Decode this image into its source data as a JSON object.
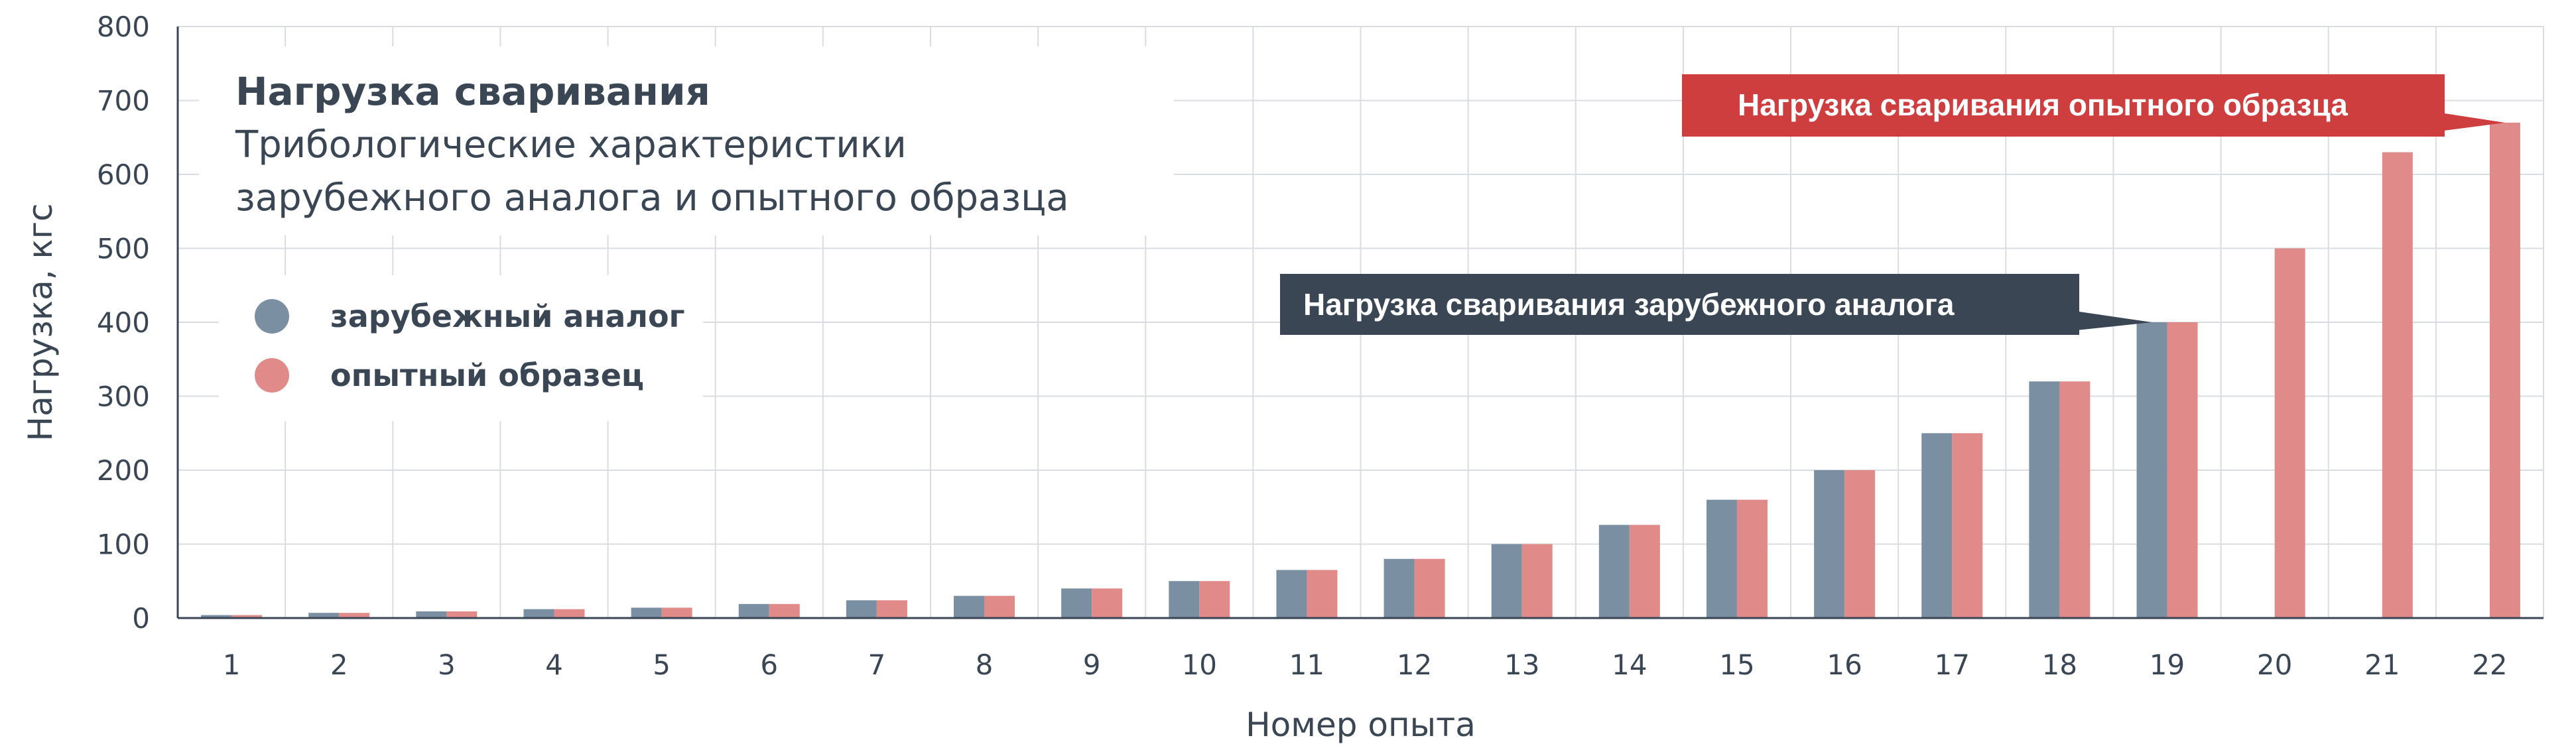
{
  "chart_data": {
    "type": "bar",
    "title": "Нагрузка сваривания",
    "subtitle_lines": [
      "Трибологические характеристики",
      "зарубежного аналога и опытного образца"
    ],
    "xlabel": "Номер опыта",
    "ylabel": "Нагрузка, кгс",
    "ylim": [
      0,
      800
    ],
    "yticks": [
      0,
      100,
      200,
      300,
      400,
      500,
      600,
      700,
      800
    ],
    "grid": true,
    "legend_position": "top-left",
    "categories": [
      "1",
      "2",
      "3",
      "4",
      "5",
      "6",
      "7",
      "8",
      "9",
      "10",
      "11",
      "12",
      "13",
      "14",
      "15",
      "16",
      "17",
      "18",
      "19",
      "20",
      "21",
      "22"
    ],
    "series": [
      {
        "name": "зарубежный аналог",
        "color": "#7b8fa3",
        "values": [
          4,
          7,
          9,
          12,
          14,
          19,
          24,
          30,
          40,
          50,
          65,
          80,
          100,
          126,
          160,
          200,
          250,
          320,
          400,
          null,
          null,
          null
        ]
      },
      {
        "name": "опытный образец",
        "color": "#e08a89",
        "values": [
          4,
          7,
          9,
          12,
          14,
          19,
          24,
          30,
          40,
          50,
          65,
          80,
          100,
          126,
          160,
          200,
          250,
          320,
          400,
          500,
          630,
          670
        ]
      }
    ],
    "annotations": [
      {
        "text": "Нагрузка сваривания зарубежного аналога",
        "color": "#3a4654",
        "target_series": 0,
        "target_category": "19",
        "target_value": 400
      },
      {
        "text": "Нагрузка сваривания опытного образца",
        "color": "#cf3e3f",
        "target_series": 1,
        "target_category": "22",
        "target_value": 670
      }
    ]
  }
}
